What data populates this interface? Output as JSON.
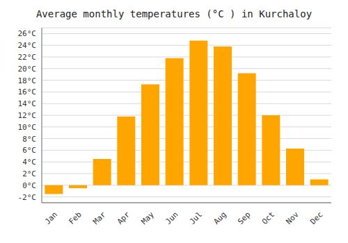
{
  "chart_data": {
    "type": "bar",
    "title": "Average monthly temperatures (°C ) in Kurchaloy",
    "categories": [
      "Jan",
      "Feb",
      "Mar",
      "Apr",
      "May",
      "Jun",
      "Jul",
      "Aug",
      "Sep",
      "Oct",
      "Nov",
      "Dec"
    ],
    "values": [
      -1.5,
      -0.5,
      4.5,
      11.8,
      17.3,
      21.8,
      24.8,
      23.8,
      19.2,
      12.0,
      6.3,
      1.0
    ],
    "color": "#FFA500",
    "ylim": [
      -3,
      27
    ],
    "yticks": [
      {
        "value": -2,
        "label": "-2°C"
      },
      {
        "value": 0,
        "label": "0°C"
      },
      {
        "value": 2,
        "label": "2°C"
      },
      {
        "value": 4,
        "label": "4°C"
      },
      {
        "value": 6,
        "label": "6°C"
      },
      {
        "value": 8,
        "label": "8°C"
      },
      {
        "value": 10,
        "label": "10°C"
      },
      {
        "value": 12,
        "label": "12°C"
      },
      {
        "value": 14,
        "label": "14°C"
      },
      {
        "value": 16,
        "label": "16°C"
      },
      {
        "value": 18,
        "label": "18°C"
      },
      {
        "value": 20,
        "label": "20°C"
      },
      {
        "value": 22,
        "label": "22°C"
      },
      {
        "value": 24,
        "label": "24°C"
      },
      {
        "value": 26,
        "label": "26°C"
      }
    ],
    "grid": true
  }
}
